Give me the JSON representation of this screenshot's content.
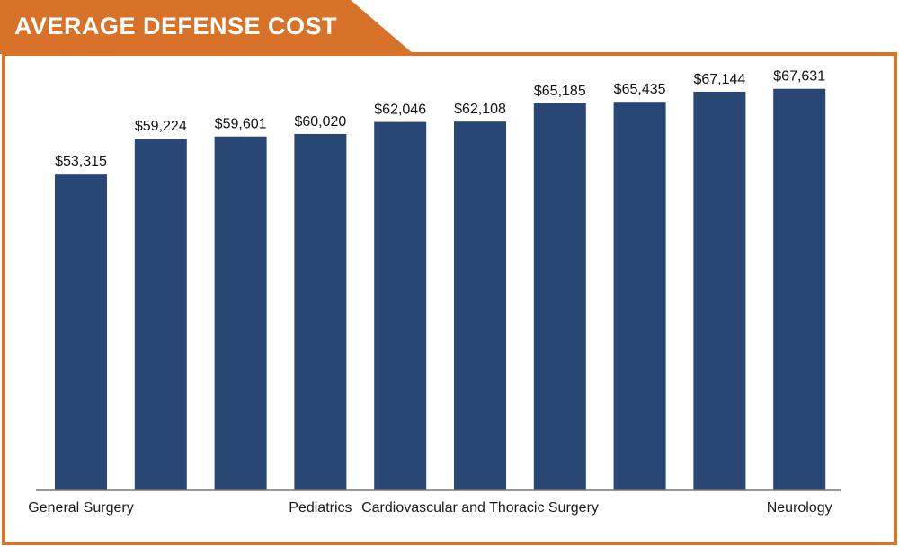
{
  "chart_data": {
    "type": "bar",
    "title": "AVERAGE DEFENSE COST",
    "categories": [
      "General Surgery",
      "",
      "",
      "Pediatrics",
      "",
      "Cardiovascular and Thoracic Surgery",
      "",
      "",
      "",
      "Neurology"
    ],
    "values": [
      53315,
      59224,
      59601,
      60020,
      62046,
      62108,
      65185,
      65435,
      67144,
      67631
    ],
    "data_labels": [
      "$53,315",
      "$59,224",
      "$59,601",
      "$60,020",
      "$62,046",
      "$62,108",
      "$65,185",
      "$65,435",
      "$67,144",
      "$67,631"
    ],
    "xlabel": "",
    "ylabel": "",
    "ylim": [
      0,
      73500
    ],
    "grid": false,
    "colors": {
      "bar": "#284775",
      "accent": "#d97229",
      "title_text": "#ffffff"
    }
  }
}
